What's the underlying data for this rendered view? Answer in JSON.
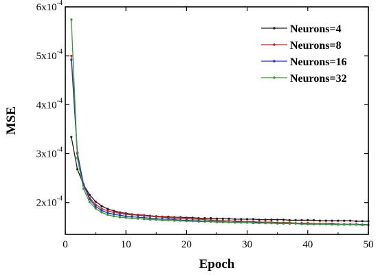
{
  "chart_data": {
    "type": "line",
    "xlabel": "Epoch",
    "ylabel": "MSE",
    "xlim": [
      0,
      50
    ],
    "ylim": [
      0.000135,
      0.0006
    ],
    "x_ticks": [
      0,
      10,
      20,
      30,
      40,
      50
    ],
    "x_tick_labels": [
      "0",
      "10",
      "20",
      "30",
      "40",
      "50"
    ],
    "y_ticks": [
      0.0002,
      0.0003,
      0.0004,
      0.0005,
      0.0006
    ],
    "y_tick_labels": [
      {
        "mantissa": "2x10",
        "exp": "-4"
      },
      {
        "mantissa": "3x10",
        "exp": "-4"
      },
      {
        "mantissa": "4x10",
        "exp": "-4"
      },
      {
        "mantissa": "5x10",
        "exp": "-4"
      },
      {
        "mantissa": "6x10",
        "exp": "-4"
      }
    ],
    "legend_position": "top-right",
    "grid": false,
    "x": [
      1,
      2,
      3,
      4,
      5,
      6,
      7,
      8,
      9,
      10,
      11,
      12,
      13,
      14,
      15,
      16,
      17,
      18,
      19,
      20,
      21,
      22,
      23,
      24,
      25,
      26,
      27,
      28,
      29,
      30,
      31,
      32,
      33,
      34,
      35,
      36,
      37,
      38,
      39,
      40,
      41,
      42,
      43,
      44,
      45,
      46,
      47,
      48,
      49,
      50
    ],
    "series": [
      {
        "name": "Neurons=4",
        "color": "#1a1a1a",
        "values": [
          0.000334,
          0.000268,
          0.000237,
          0.000216,
          0.000202,
          0.000193,
          0.000187,
          0.000183,
          0.00018,
          0.000178,
          0.000176,
          0.000175,
          0.000174,
          0.000173,
          0.000172,
          0.000171,
          0.000171,
          0.00017,
          0.00017,
          0.000169,
          0.000169,
          0.000168,
          0.000168,
          0.000168,
          0.000167,
          0.000167,
          0.000167,
          0.000166,
          0.000166,
          0.000166,
          0.000166,
          0.000165,
          0.000165,
          0.000165,
          0.000165,
          0.000165,
          0.000164,
          0.000164,
          0.000164,
          0.000164,
          0.000164,
          0.000163,
          0.000163,
          0.000163,
          0.000163,
          0.000163,
          0.000163,
          0.000162,
          0.000162,
          0.000162
        ]
      },
      {
        "name": "Neurons=8",
        "color": "#cc2222",
        "values": [
          0.0005,
          0.000302,
          0.000238,
          0.00021,
          0.000196,
          0.000188,
          0.000183,
          0.00018,
          0.000178,
          0.000176,
          0.000175,
          0.000174,
          0.000173,
          0.000172,
          0.000171,
          0.00017,
          0.000169,
          0.000168,
          0.000168,
          0.000167,
          0.000166,
          0.000166,
          0.000165,
          0.000164,
          0.000164,
          0.000163,
          0.000163,
          0.000162,
          0.000162,
          0.000161,
          0.000161,
          0.00016,
          0.00016,
          0.00016,
          0.000159,
          0.000159,
          0.000159,
          0.000158,
          0.000158,
          0.000158,
          0.000157,
          0.000157,
          0.000157,
          0.000157,
          0.000156,
          0.000156,
          0.000156,
          0.000156,
          0.000155,
          0.000155
        ]
      },
      {
        "name": "Neurons=16",
        "color": "#2233bb",
        "values": [
          0.000492,
          0.0003,
          0.000236,
          0.000207,
          0.000192,
          0.000184,
          0.000179,
          0.000176,
          0.000174,
          0.000172,
          0.000171,
          0.00017,
          0.000169,
          0.000168,
          0.000167,
          0.000166,
          0.000166,
          0.000165,
          0.000164,
          0.000164,
          0.000163,
          0.000163,
          0.000162,
          0.000162,
          0.000161,
          0.000161,
          0.00016,
          0.00016,
          0.00016,
          0.000159,
          0.000159,
          0.000159,
          0.000158,
          0.000158,
          0.000158,
          0.000157,
          0.000157,
          0.000157,
          0.000157,
          0.000156,
          0.000156,
          0.000156,
          0.000156,
          0.000156,
          0.000155,
          0.000155,
          0.000155,
          0.000155,
          0.000155,
          0.000154
        ]
      },
      {
        "name": "Neurons=32",
        "color": "#339933",
        "values": [
          0.000574,
          0.000291,
          0.000228,
          0.000201,
          0.000188,
          0.00018,
          0.000175,
          0.000172,
          0.00017,
          0.000169,
          0.000168,
          0.000167,
          0.000166,
          0.000165,
          0.000165,
          0.000164,
          0.000164,
          0.000163,
          0.000163,
          0.000162,
          0.000162,
          0.000161,
          0.000161,
          0.000161,
          0.00016,
          0.00016,
          0.00016,
          0.000159,
          0.000159,
          0.000159,
          0.000158,
          0.000158,
          0.000158,
          0.000158,
          0.000157,
          0.000157,
          0.000157,
          0.000157,
          0.000156,
          0.000156,
          0.000156,
          0.000156,
          0.000156,
          0.000155,
          0.000155,
          0.000155,
          0.000155,
          0.000155,
          0.000154,
          0.000154
        ]
      }
    ]
  }
}
